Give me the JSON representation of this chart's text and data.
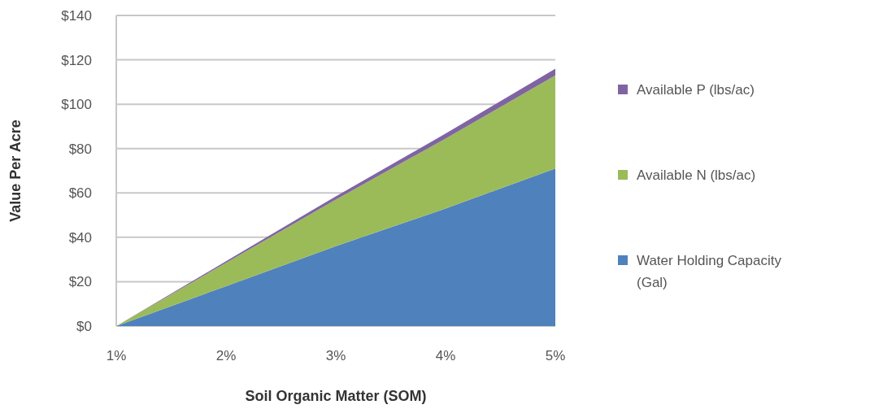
{
  "chart_data": {
    "type": "area",
    "stacked": true,
    "xlabel": "Soil Organic Matter (SOM)",
    "ylabel": "Value Per Acre",
    "categories": [
      "1%",
      "2%",
      "3%",
      "4%",
      "5%"
    ],
    "series": [
      {
        "name": "Water Holding Capacity (Gal)",
        "color": "#4f81bd",
        "values": [
          0,
          18,
          36,
          53,
          71
        ]
      },
      {
        "name": "Available N (lbs/ac)",
        "color": "#9bbb59",
        "values": [
          0,
          10.5,
          21,
          31.5,
          42
        ]
      },
      {
        "name": "Available P (lbs/ac)",
        "color": "#8064a2",
        "values": [
          0,
          0.75,
          1.5,
          2.25,
          3
        ]
      }
    ],
    "ylim": [
      0,
      140
    ],
    "yticks": [
      {
        "value": 0,
        "label": "$0"
      },
      {
        "value": 20,
        "label": "$20"
      },
      {
        "value": 40,
        "label": "$40"
      },
      {
        "value": 60,
        "label": "$60"
      },
      {
        "value": 80,
        "label": "$80"
      },
      {
        "value": 100,
        "label": "$100"
      },
      {
        "value": 120,
        "label": "$120"
      },
      {
        "value": 140,
        "label": "$140"
      }
    ],
    "grid": "y",
    "legend": "right"
  }
}
